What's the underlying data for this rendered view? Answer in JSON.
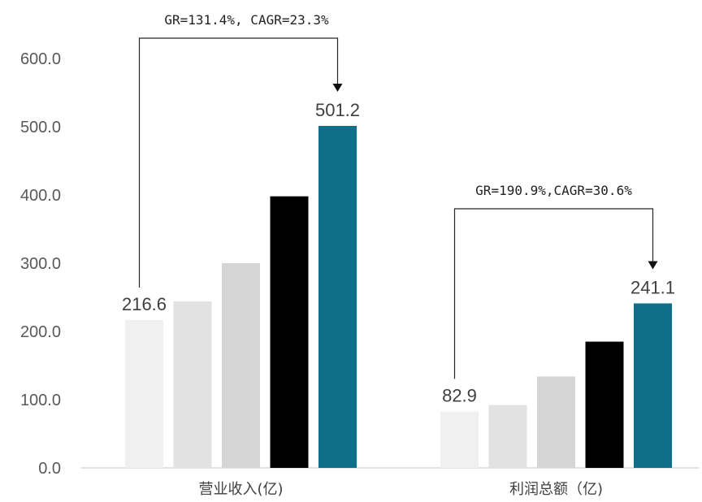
{
  "chart_data": {
    "type": "bar",
    "title": "",
    "xlabel": "",
    "ylabel": "",
    "ylim": [
      0,
      600
    ],
    "yticks": [
      "0.0",
      "100.0",
      "200.0",
      "300.0",
      "400.0",
      "500.0",
      "600.0"
    ],
    "grid": false,
    "legend": "none",
    "categories": [
      "营业收入(亿)",
      "利润总额（亿)"
    ],
    "groups": [
      {
        "category": "营业收入(亿)",
        "values": [
          216.6,
          244,
          300,
          398,
          501.2
        ],
        "colors": [
          "#F0F0F0",
          "#E3E2E3",
          "#D5D5D5",
          "#000000",
          "#0F6E8A"
        ],
        "labels": [
          "216.6",
          "",
          "",
          "",
          "501.2"
        ],
        "annotation": "GR=131.4%, CAGR=23.3%"
      },
      {
        "category": "利润总额（亿)",
        "values": [
          82.9,
          92,
          134,
          185,
          241.1
        ],
        "colors": [
          "#F0F0F0",
          "#E3E2E3",
          "#D5D5D5",
          "#000000",
          "#0F6E8A"
        ],
        "labels": [
          "82.9",
          "",
          "",
          "",
          "241.1"
        ],
        "annotation": "GR=190.9%,CAGR=30.6%"
      }
    ]
  }
}
